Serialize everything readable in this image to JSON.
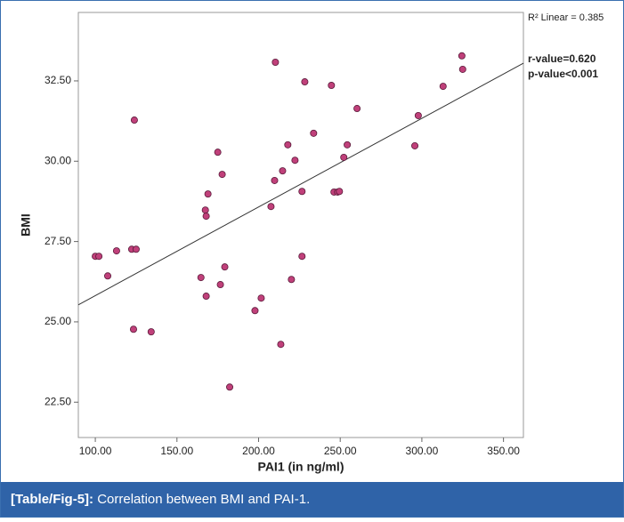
{
  "chart_data": {
    "type": "scatter",
    "xlabel": "PAI1 (in ng/ml)",
    "ylabel": "BMI",
    "annotations": [
      "R² Linear = 0.385",
      "r-value=0.620",
      "p-value<0.001"
    ],
    "caption_label": "[Table/Fig-5]:",
    "caption": "Correlation between BMI and PAI-1.",
    "color": "#c0407a",
    "x": [
      100.0,
      102.2,
      107.6,
      113.0,
      122.3,
      125.0,
      123.9,
      123.4,
      134.2,
      175.0,
      177.7,
      169.0,
      167.4,
      167.9,
      164.7,
      179.3,
      176.6,
      167.9,
      201.6,
      197.8,
      182.3,
      210.3,
      228.3,
      244.6,
      260.3,
      233.7,
      217.9,
      222.3,
      214.7,
      209.8,
      207.6,
      226.6,
      246.2,
      248.4,
      249.5,
      252.2,
      254.3,
      226.6,
      220.1,
      213.6,
      295.7,
      297.8,
      313.0,
      324.5,
      325.0
    ],
    "values": [
      27.04,
      27.04,
      26.43,
      27.21,
      27.26,
      27.26,
      31.28,
      24.77,
      24.69,
      30.28,
      29.59,
      28.98,
      28.48,
      28.29,
      26.38,
      26.71,
      26.16,
      25.8,
      25.74,
      25.35,
      22.97,
      33.08,
      32.47,
      32.36,
      31.64,
      30.87,
      30.51,
      30.03,
      29.7,
      29.4,
      28.59,
      29.06,
      29.04,
      29.04,
      29.06,
      30.12,
      30.51,
      27.04,
      26.32,
      24.3,
      30.48,
      31.42,
      32.33,
      33.28,
      32.86
    ],
    "fit_line": {
      "x": [
        89.6,
        362.2
      ],
      "y": [
        25.53,
        33.05
      ]
    },
    "xlim": [
      89.6,
      362.2
    ],
    "ylim": [
      21.4,
      34.63
    ],
    "xticks": [
      {
        "value": 100,
        "label": "100.00"
      },
      {
        "value": 150,
        "label": "150.00"
      },
      {
        "value": 200,
        "label": "200.00"
      },
      {
        "value": 250,
        "label": "250.00"
      },
      {
        "value": 300,
        "label": "300.00"
      },
      {
        "value": 350,
        "label": "350.00"
      }
    ],
    "yticks": [
      {
        "value": 22.5,
        "label": "22.50"
      },
      {
        "value": 25,
        "label": "25.00"
      },
      {
        "value": 27.5,
        "label": "27.50"
      },
      {
        "value": 30,
        "label": "30.00"
      },
      {
        "value": 32.5,
        "label": "32.50"
      }
    ]
  }
}
